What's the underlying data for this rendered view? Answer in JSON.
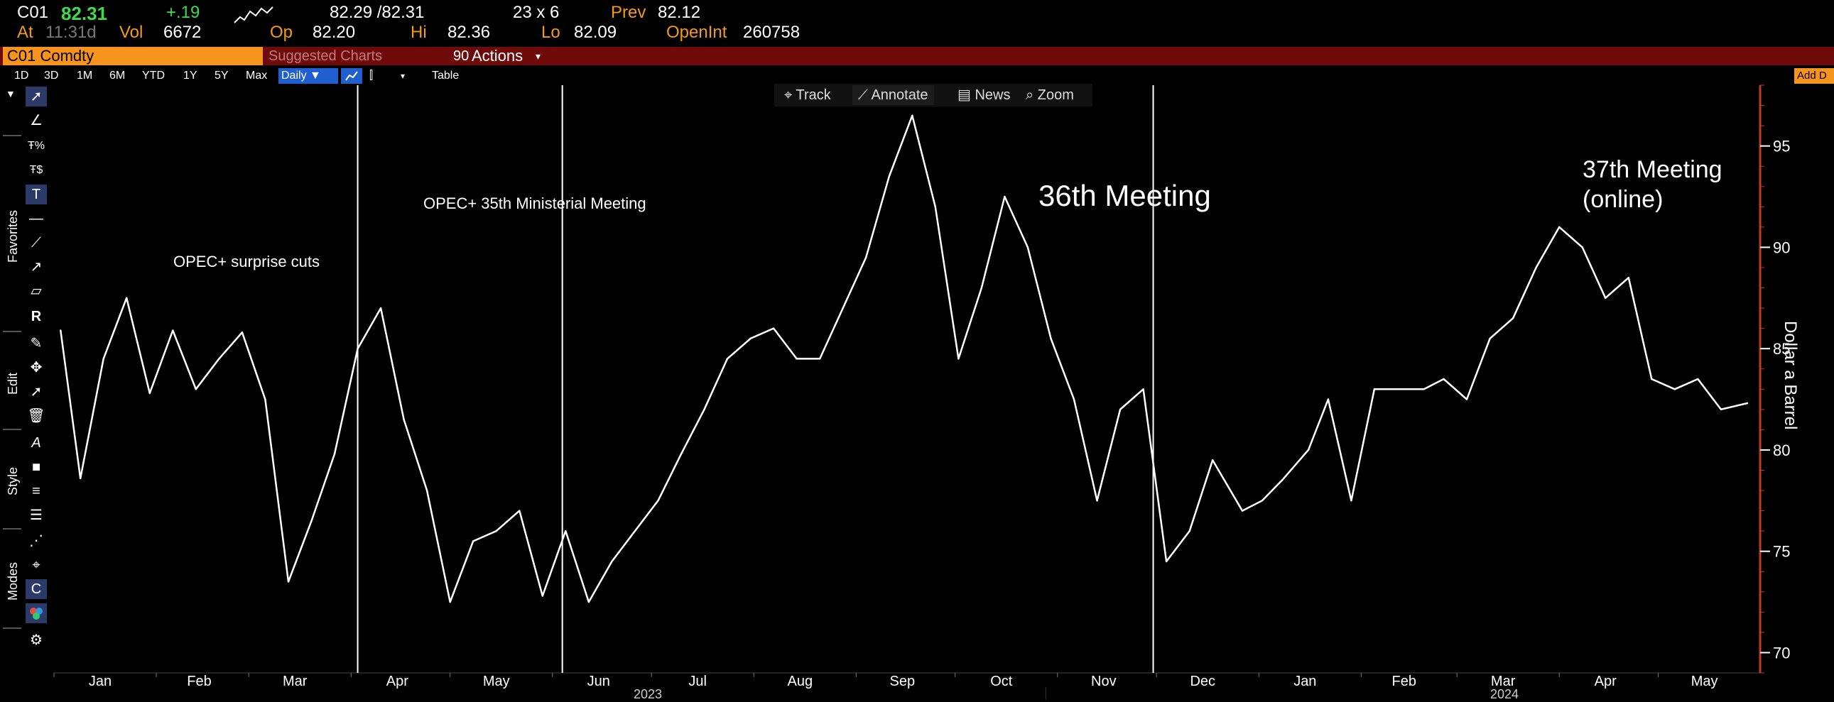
{
  "quote": {
    "ticker": "C01",
    "last": "82.31",
    "change": "+.19",
    "bid_ask": "82.29 /82.31",
    "size": "23 x 6",
    "prev_label": "Prev",
    "prev": "82.12",
    "at_label": "At",
    "at_time": "11:31d",
    "vol_label": "Vol",
    "vol": "6672",
    "op_label": "Op",
    "op": "82.20",
    "hi_label": "Hi",
    "hi": "82.36",
    "lo_label": "Lo",
    "lo": "82.09",
    "oi_label": "OpenInt",
    "oi": "260758"
  },
  "security": {
    "name": "C01 Comdty",
    "suggested": "Suggested Charts",
    "actions_prefix": "90",
    "actions": "Actions"
  },
  "ranges": [
    "1D",
    "3D",
    "1M",
    "6M",
    "YTD",
    "1Y",
    "5Y",
    "Max"
  ],
  "frequency": "Daily",
  "table_label": "Table",
  "add_data": "Add D",
  "chart_tools": {
    "track": "Track",
    "annotate": "Annotate",
    "news": "News",
    "zoom": "Zoom"
  },
  "side_groups": [
    "Favorites",
    "Edit",
    "Style",
    "Modes"
  ],
  "icons": {
    "toolbar": [
      "cursor-icon",
      "line-icon",
      "percent-icon",
      "dollar-icon",
      "text-icon",
      "horizontal-line-icon",
      "trendline-icon",
      "ray-icon",
      "channel-icon",
      "r-icon",
      "pencil-icon",
      "move-icon",
      "select-icon",
      "trash-icon",
      "font-style-icon",
      "fill-icon",
      "line-width-icon",
      "line-style-icon",
      "dashed-icon",
      "crosshair-icon",
      "magnet-icon",
      "color-icon",
      "gear-icon"
    ]
  },
  "colors": {
    "background": "#000000",
    "line": "#ffffff",
    "accent_orange": "#f7941d",
    "security_bar": "#6e0a0a",
    "selected_blue": "#1f5fd0",
    "axis_red": "#c0392b"
  },
  "chart_data": {
    "type": "line",
    "ylabel": "Dollar a Barrel",
    "ylim": [
      69,
      98
    ],
    "yticks": [
      70,
      75,
      80,
      85,
      90,
      95
    ],
    "xlabels": [
      "Jan",
      "Feb",
      "Mar",
      "Apr",
      "May",
      "Jun",
      "Jul",
      "Aug",
      "Sep",
      "Oct",
      "Nov",
      "Dec",
      "Jan",
      "Feb",
      "Mar",
      "Apr",
      "May"
    ],
    "years": [
      "2023",
      "2024"
    ],
    "grid": false,
    "annotations": [
      "OPEC+ surprise cuts",
      "OPEC+ 35th Ministerial Meeting",
      "36th Meeting",
      "37th Meeting",
      "(online)"
    ],
    "event_lines": [
      "2023-04-03",
      "2023-06-04",
      "2023-11-30"
    ],
    "x": [
      "2023-01-03",
      "2023-01-09",
      "2023-01-16",
      "2023-01-23",
      "2023-01-30",
      "2023-02-06",
      "2023-02-13",
      "2023-02-20",
      "2023-02-27",
      "2023-03-06",
      "2023-03-13",
      "2023-03-20",
      "2023-03-27",
      "2023-04-03",
      "2023-04-10",
      "2023-04-17",
      "2023-04-24",
      "2023-05-01",
      "2023-05-08",
      "2023-05-15",
      "2023-05-22",
      "2023-05-29",
      "2023-06-05",
      "2023-06-12",
      "2023-06-19",
      "2023-06-26",
      "2023-07-03",
      "2023-07-10",
      "2023-07-17",
      "2023-07-24",
      "2023-07-31",
      "2023-08-07",
      "2023-08-14",
      "2023-08-21",
      "2023-08-28",
      "2023-09-04",
      "2023-09-11",
      "2023-09-18",
      "2023-09-25",
      "2023-10-02",
      "2023-10-09",
      "2023-10-16",
      "2023-10-23",
      "2023-10-30",
      "2023-11-06",
      "2023-11-13",
      "2023-11-20",
      "2023-11-27",
      "2023-12-04",
      "2023-12-11",
      "2023-12-18",
      "2023-12-27",
      "2024-01-02",
      "2024-01-08",
      "2024-01-16",
      "2024-01-22",
      "2024-01-29",
      "2024-02-05",
      "2024-02-12",
      "2024-02-20",
      "2024-02-26",
      "2024-03-04",
      "2024-03-11",
      "2024-03-18",
      "2024-03-25",
      "2024-04-01",
      "2024-04-08",
      "2024-04-15",
      "2024-04-22",
      "2024-04-29",
      "2024-05-06",
      "2024-05-13",
      "2024-05-20",
      "2024-05-28"
    ],
    "series": [
      {
        "values": [
          85.9,
          78.6,
          84.5,
          87.5,
          82.8,
          85.9,
          83.0,
          84.5,
          85.8,
          82.5,
          73.5,
          76.5,
          79.8,
          85.0,
          87.0,
          81.5,
          78.0,
          72.5,
          75.5,
          76.0,
          77.0,
          72.8,
          76.0,
          72.5,
          74.5,
          76.0,
          77.5,
          79.8,
          82.0,
          84.5,
          85.5,
          86.0,
          84.5,
          84.5,
          87.0,
          89.5,
          93.5,
          96.5,
          92.0,
          84.5,
          88.0,
          92.5,
          90.0,
          85.5,
          82.5,
          77.5,
          82.0,
          83.0,
          74.5,
          76.0,
          79.5,
          77.0,
          77.5,
          78.5,
          80.0,
          82.5,
          77.5,
          83.0,
          83.0,
          83.0,
          83.5,
          82.5,
          85.5,
          86.5,
          89.0,
          91.0,
          90.0,
          87.5,
          88.5,
          83.5,
          83.0,
          83.5,
          82.0,
          82.31
        ]
      }
    ]
  }
}
